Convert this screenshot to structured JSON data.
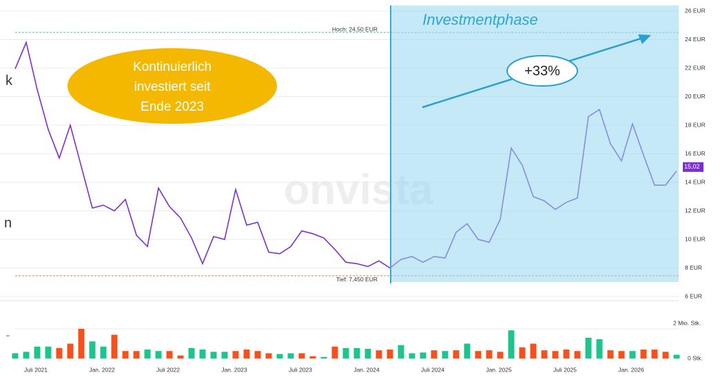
{
  "chart_data": {
    "type": "line",
    "categories": [
      null,
      null,
      "Juli 2021",
      null,
      null,
      null,
      null,
      null,
      "Jan. 2022",
      null,
      null,
      null,
      null,
      null,
      "Juli 2022",
      null,
      null,
      null,
      null,
      null,
      "Jan. 2023",
      null,
      null,
      null,
      null,
      null,
      "Juli 2023",
      null,
      null,
      null,
      null,
      null,
      "Jan. 2024",
      null,
      null,
      null,
      null,
      null,
      "Juli 2024",
      null,
      null,
      null,
      null,
      null,
      "Jan. 2025",
      null,
      null,
      null,
      null,
      null,
      "Juli 2025",
      null,
      null,
      null,
      null,
      null,
      "Jan. 2026",
      null,
      null,
      null,
      null
    ],
    "series": [
      {
        "color": "#7b2fd0",
        "values": [
          21.95,
          23.8,
          20.5,
          17.7,
          15.7,
          18.0,
          15.1,
          12.2,
          12.4,
          12.0,
          12.8,
          10.3,
          9.5,
          13.6,
          12.3,
          11.5,
          10.1,
          8.3,
          10.2,
          10.0,
          13.5,
          11.0,
          11.2,
          9.1,
          9.0,
          9.5,
          10.6,
          10.4,
          10.1,
          9.3,
          8.4,
          8.3,
          8.1,
          8.5,
          8.0,
          8.6,
          8.8,
          8.4,
          8.8,
          8.7,
          10.5,
          11.1,
          10.0,
          9.8,
          11.4,
          16.4,
          15.2,
          13.0,
          12.7,
          12.1,
          12.6,
          12.9,
          18.6,
          19.1,
          16.7,
          15.5,
          18.1,
          15.9,
          13.8,
          13.8,
          14.8
        ]
      }
    ],
    "ylim": [
      6,
      26
    ],
    "yticks": [
      {
        "value": 6,
        "label": "6 EUR"
      },
      {
        "value": 8,
        "label": "8 EUR"
      },
      {
        "value": 10,
        "label": "10 EUR"
      },
      {
        "value": 12,
        "label": "12 EUR"
      },
      {
        "value": 14,
        "label": "14 EUR"
      },
      {
        "value": 16,
        "label": "16 EUR"
      },
      {
        "value": 18,
        "label": "18 EUR"
      },
      {
        "value": 20,
        "label": "20 EUR"
      },
      {
        "value": 22,
        "label": "22 EUR"
      },
      {
        "value": 24,
        "label": "24 EUR"
      },
      {
        "value": 26,
        "label": "26 EUR"
      }
    ],
    "grid": true,
    "current": {
      "value": 15.02,
      "label": "15,02"
    },
    "high": {
      "value": 24.5,
      "label": "Hoch: 24,50 EUR",
      "color": "#3cc9a0"
    },
    "low": {
      "value": 7.45,
      "label": "Tief: 7,450 EUR",
      "color": "#f07a4a"
    },
    "volume": {
      "values": [
        0.35,
        0.45,
        0.8,
        0.8,
        0.7,
        1.0,
        2.0,
        1.15,
        0.8,
        1.6,
        0.5,
        0.5,
        0.6,
        0.5,
        0.5,
        0.2,
        0.7,
        0.6,
        0.45,
        0.45,
        0.5,
        0.6,
        0.5,
        0.35,
        0.3,
        0.35,
        0.35,
        0.15,
        0.1,
        0.8,
        0.7,
        0.7,
        0.65,
        0.55,
        0.6,
        0.9,
        0.35,
        0.4,
        0.55,
        0.5,
        0.55,
        1.0,
        0.5,
        0.55,
        0.45,
        1.9,
        0.75,
        1.0,
        0.55,
        0.5,
        0.6,
        0.5,
        1.4,
        1.3,
        0.55,
        0.5,
        0.5,
        0.6,
        0.6,
        0.45,
        0.25
      ],
      "colors": [
        "#1fc38e",
        "#1fc38e",
        "#1fc38e",
        "#1fc38e",
        "#f4511e",
        "#f4511e",
        "#f4511e",
        "#1fc38e",
        "#1fc38e",
        "#f4511e",
        "#f4511e",
        "#f4511e",
        "#1fc38e",
        "#1fc38e",
        "#f4511e",
        "#f4511e",
        "#1fc38e",
        "#1fc38e",
        "#1fc38e",
        "#1fc38e",
        "#f4511e",
        "#f4511e",
        "#f4511e",
        "#f4511e",
        "#1fc38e",
        "#1fc38e",
        "#f4511e",
        "#f4511e",
        "#1fc38e",
        "#f4511e",
        "#1fc38e",
        "#1fc38e",
        "#1fc38e",
        "#f4511e",
        "#f4511e",
        "#1fc38e",
        "#1fc38e",
        "#1fc38e",
        "#f4511e",
        "#1fc38e",
        "#f4511e",
        "#1fc38e",
        "#f4511e",
        "#f4511e",
        "#f4511e",
        "#1fc38e",
        "#f4511e",
        "#f4511e",
        "#f4511e",
        "#f4511e",
        "#f4511e",
        "#f4511e",
        "#1fc38e",
        "#1fc38e",
        "#f4511e",
        "#f4511e",
        "#1fc38e",
        "#f4511e",
        "#f4511e",
        "#f4511e",
        "#1fc38e"
      ],
      "ylim": [
        0,
        2
      ],
      "yticks": [
        {
          "value": 0,
          "label": "0 Stk."
        },
        {
          "value": 2,
          "label": "2 Mio. Stk."
        }
      ]
    },
    "phase_label": "Investmentphase",
    "callout": [
      "Kontinuierlich",
      "investiert seit",
      "Ende 2023"
    ],
    "gain_label": "+33%",
    "watermark": "onvista",
    "left_fragments": [
      "k",
      "n",
      "-"
    ]
  }
}
